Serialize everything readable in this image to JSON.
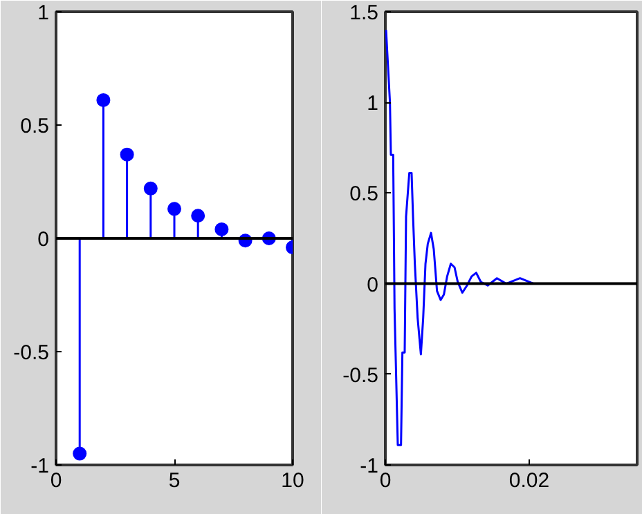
{
  "chart_data": [
    {
      "type": "lollipop",
      "x": [
        1,
        2,
        3,
        4,
        5,
        6,
        7,
        8,
        9,
        10
      ],
      "series": [
        {
          "color": "#0000ff",
          "values": [
            -0.95,
            0.61,
            0.37,
            0.22,
            0.13,
            0.1,
            0.04,
            -0.01,
            0,
            -0.04
          ]
        }
      ],
      "xlim": [
        0,
        10
      ],
      "xticks": [
        0,
        5,
        10
      ],
      "ylim": [
        -1,
        1
      ],
      "yticks": [
        -1,
        -0.5,
        0,
        0.5,
        1
      ],
      "marker": "circle",
      "grid": false,
      "ref_lines": [
        {
          "axis": "y",
          "value": 0,
          "color": "#000000"
        }
      ]
    },
    {
      "type": "line",
      "series": [
        {
          "color": "#0000ff",
          "x": [
            0.0001,
            0.00064,
            0.00077,
            0.00109,
            0.00128,
            0.00173,
            0.00218,
            0.00237,
            0.00269,
            0.00288,
            0.00333,
            0.00365,
            0.00385,
            0.0041,
            0.00449,
            0.00494,
            0.00526,
            0.00558,
            0.0059,
            0.00635,
            0.00673,
            0.00718,
            0.00769,
            0.00814,
            0.00859,
            0.0091,
            0.00962,
            0.01006,
            0.0107,
            0.01135,
            0.01199,
            0.01263,
            0.01327,
            0.01423,
            0.01551,
            0.0168,
            0.01872,
            0.02064
          ],
          "values": [
            1.4,
            1.0,
            0.71,
            0.71,
            -0.14,
            -0.89,
            -0.89,
            -0.38,
            -0.38,
            0.37,
            0.61,
            0.61,
            0.37,
            0.11,
            -0.19,
            -0.39,
            -0.19,
            0.11,
            0.22,
            0.28,
            0.19,
            -0.04,
            -0.09,
            -0.06,
            0.04,
            0.11,
            0.09,
            0.01,
            -0.05,
            -0.01,
            0.04,
            0.06,
            0.01,
            -0.01,
            0.03,
            0,
            0.03,
            0
          ]
        }
      ],
      "xlim": [
        0,
        0.035
      ],
      "xticks": [
        0,
        0.02
      ],
      "ylim": [
        -1,
        1.5
      ],
      "yticks": [
        -1,
        -0.5,
        0,
        0.5,
        1,
        1.5
      ],
      "marker": "none",
      "line_style": "solid",
      "grid": false,
      "ref_lines": [
        {
          "axis": "y",
          "value": 0,
          "color": "#000000"
        }
      ]
    }
  ]
}
